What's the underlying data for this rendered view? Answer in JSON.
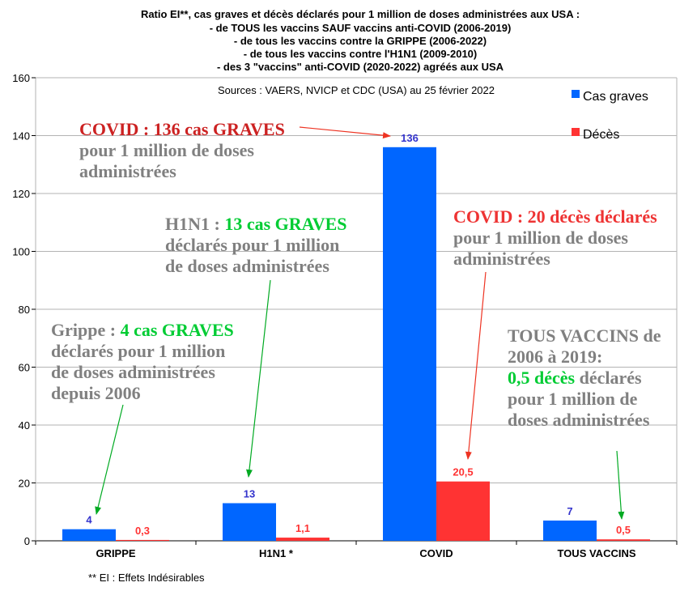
{
  "title_lines": [
    "Ratio EI**, cas graves et décès déclarés pour 1 million de doses administrées aux USA :",
    "- de TOUS les vaccins SAUF vaccins anti-COVID (2006-2019)",
    "- de tous les vaccins contre la GRIPPE (2006-2022)",
    "- de tous les vaccins contre l'H1N1 (2009-2010)",
    "- des 3 \"vaccins\" anti-COVID (2020-2022) agréés aux USA"
  ],
  "sources": "Sources : VAERS, NVICP et CDC (USA) au 25 février 2022",
  "footnote": "** EI : Effets Indésirables",
  "colors": {
    "cas_graves": "#0066ff",
    "deces": "#ff3333",
    "label_blue": "#3333cc",
    "label_red": "#ff3333",
    "green": "#00cc33",
    "dark_red": "#cc2222",
    "gray": "#808080",
    "arrow_red": "#ee3322",
    "arrow_green": "#00aa22"
  },
  "chart_data": {
    "type": "bar",
    "categories": [
      "GRIPPE",
      "H1N1 *",
      "COVID",
      "TOUS VACCINS"
    ],
    "series": [
      {
        "name": "Cas graves",
        "values": [
          4,
          13,
          136,
          7
        ],
        "labels": [
          "4",
          "13",
          "136",
          "7"
        ]
      },
      {
        "name": "Décès",
        "values": [
          0.3,
          1.1,
          20.5,
          0.5
        ],
        "labels": [
          "0,3",
          "1,1",
          "20,5",
          "0,5"
        ]
      }
    ],
    "ylim": [
      0,
      160
    ],
    "yticks": [
      0,
      20,
      40,
      60,
      80,
      100,
      120,
      140,
      160
    ],
    "grid": true,
    "legend_position": "top-right"
  },
  "annotations": {
    "covid_graves": {
      "l1a": "COVID : 136 cas GRAVES",
      "l2": "pour 1 million de doses",
      "l3": "administrées"
    },
    "covid_deces": {
      "l1a": "COVID : 20 décès déclarés",
      "l2": "pour 1 million de doses",
      "l3": "administrées"
    },
    "h1n1": {
      "l1a": "H1N1 : ",
      "l1b": "13 cas GRAVES",
      "l2": "déclarés pour 1 million",
      "l3": "de doses administrées"
    },
    "grippe": {
      "l1a": "Grippe : ",
      "l1b": "4 cas GRAVES",
      "l2": "déclarés pour 1 million",
      "l3": "de doses administrées",
      "l4": "depuis 2006"
    },
    "tous": {
      "l1": "TOUS VACCINS de",
      "l2": "2006 à 2019:",
      "l3a": "0,5 décès",
      "l3b": " déclarés",
      "l4": "pour 1 million de",
      "l5": "doses administrées"
    }
  }
}
